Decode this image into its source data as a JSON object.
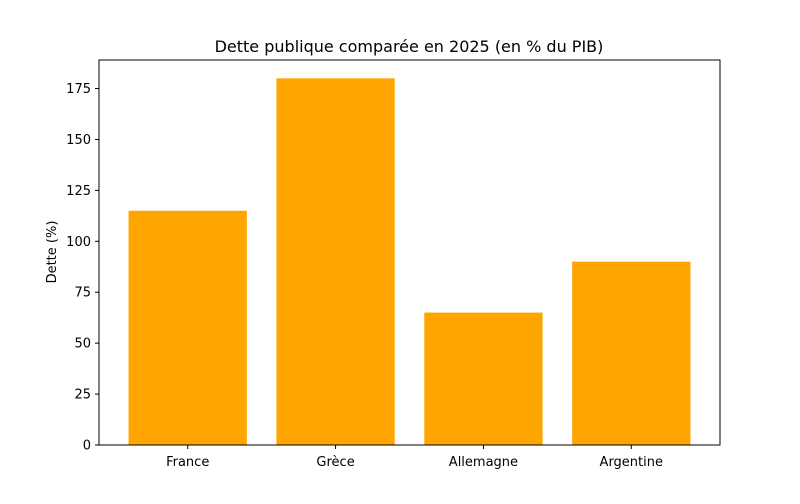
{
  "chart_data": {
    "type": "bar",
    "title": "Dette publique comparée en 2025 (en % du PIB)",
    "xlabel": "",
    "ylabel": "Dette (%)",
    "categories": [
      "France",
      "Grèce",
      "Allemagne",
      "Argentine"
    ],
    "values": [
      115,
      180,
      65,
      90
    ],
    "ylim": [
      0,
      189
    ],
    "yticks": [
      0,
      25,
      50,
      75,
      100,
      125,
      150,
      175
    ],
    "grid": false,
    "legend": "none",
    "bar_color": "#ffa500"
  }
}
